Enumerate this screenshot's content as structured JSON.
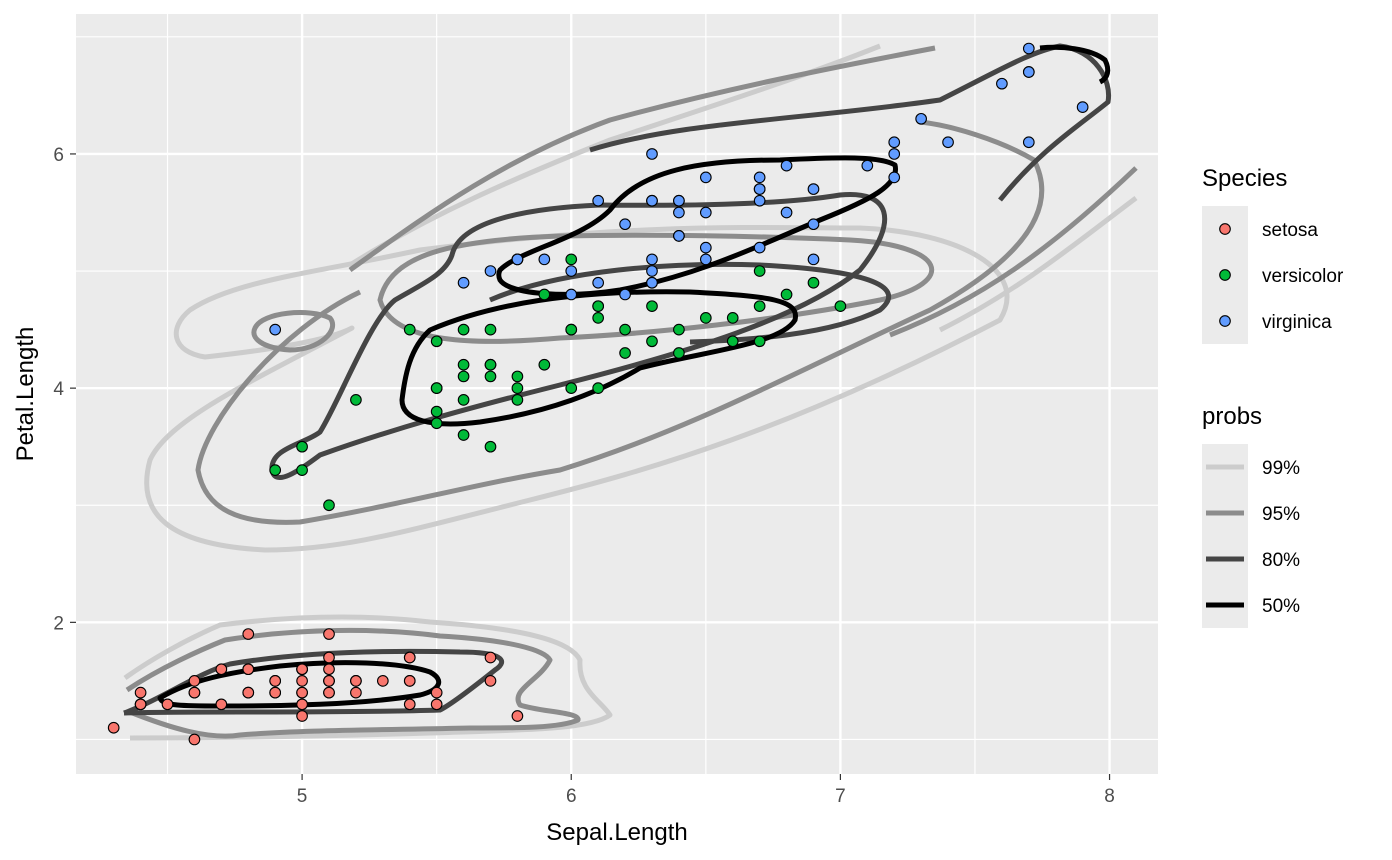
{
  "chart_data": {
    "type": "scatter",
    "title": "",
    "xlabel": "Sepal.Length",
    "ylabel": "Petal.Length",
    "xlim": [
      4.16,
      8.18
    ],
    "ylim": [
      0.705,
      7.195
    ],
    "x_ticks": [
      5,
      6,
      7,
      8
    ],
    "y_ticks": [
      2,
      4,
      6
    ],
    "x_tick_labels": [
      "5",
      "6",
      "7",
      "8"
    ],
    "y_tick_labels": [
      "2",
      "4",
      "6"
    ],
    "grid": true,
    "legend_placement": "right",
    "legends": {
      "species": {
        "title": "Species",
        "entries": [
          {
            "label": "setosa",
            "color": "#F8766D"
          },
          {
            "label": "versicolor",
            "color": "#00BA38"
          },
          {
            "label": "virginica",
            "color": "#619CFF"
          }
        ]
      },
      "probs": {
        "title": "probs",
        "entries": [
          {
            "label": "99%",
            "color": "#cccccc",
            "prob": 0.99
          },
          {
            "label": "95%",
            "color": "#8c8c8c",
            "prob": 0.95
          },
          {
            "label": "80%",
            "color": "#454545",
            "prob": 0.8
          },
          {
            "label": "50%",
            "color": "#000000",
            "prob": 0.5
          }
        ]
      }
    },
    "series": [
      {
        "name": "setosa",
        "color": "#F8766D",
        "points": [
          [
            5.1,
            1.4
          ],
          [
            4.9,
            1.4
          ],
          [
            4.7,
            1.3
          ],
          [
            4.6,
            1.5
          ],
          [
            5.0,
            1.4
          ],
          [
            5.4,
            1.7
          ],
          [
            4.6,
            1.4
          ],
          [
            5.0,
            1.5
          ],
          [
            4.4,
            1.4
          ],
          [
            4.9,
            1.5
          ],
          [
            5.4,
            1.5
          ],
          [
            4.8,
            1.6
          ],
          [
            4.8,
            1.4
          ],
          [
            4.3,
            1.1
          ],
          [
            5.8,
            1.2
          ],
          [
            5.7,
            1.5
          ],
          [
            5.4,
            1.3
          ],
          [
            5.1,
            1.4
          ],
          [
            5.7,
            1.7
          ],
          [
            5.1,
            1.5
          ],
          [
            5.4,
            1.7
          ],
          [
            5.1,
            1.5
          ],
          [
            4.6,
            1.0
          ],
          [
            5.1,
            1.7
          ],
          [
            4.8,
            1.9
          ],
          [
            5.0,
            1.6
          ],
          [
            5.0,
            1.6
          ],
          [
            5.2,
            1.5
          ],
          [
            5.2,
            1.4
          ],
          [
            4.7,
            1.6
          ],
          [
            4.8,
            1.6
          ],
          [
            5.4,
            1.5
          ],
          [
            5.2,
            1.5
          ],
          [
            5.5,
            1.4
          ],
          [
            4.9,
            1.5
          ],
          [
            5.0,
            1.2
          ],
          [
            5.5,
            1.3
          ],
          [
            4.9,
            1.4
          ],
          [
            4.4,
            1.3
          ],
          [
            5.1,
            1.5
          ],
          [
            5.0,
            1.3
          ],
          [
            4.5,
            1.3
          ],
          [
            4.4,
            1.3
          ],
          [
            5.0,
            1.6
          ],
          [
            5.1,
            1.9
          ],
          [
            4.8,
            1.4
          ],
          [
            5.1,
            1.6
          ],
          [
            4.6,
            1.4
          ],
          [
            5.3,
            1.5
          ],
          [
            5.0,
            1.4
          ]
        ]
      },
      {
        "name": "versicolor",
        "color": "#00BA38",
        "points": [
          [
            7.0,
            4.7
          ],
          [
            6.4,
            4.5
          ],
          [
            6.9,
            4.9
          ],
          [
            5.5,
            4.0
          ],
          [
            6.5,
            4.6
          ],
          [
            5.7,
            4.5
          ],
          [
            6.3,
            4.7
          ],
          [
            4.9,
            3.3
          ],
          [
            6.6,
            4.6
          ],
          [
            5.2,
            3.9
          ],
          [
            5.0,
            3.5
          ],
          [
            5.9,
            4.2
          ],
          [
            6.0,
            4.0
          ],
          [
            6.1,
            4.7
          ],
          [
            5.6,
            3.6
          ],
          [
            6.7,
            4.4
          ],
          [
            5.6,
            4.5
          ],
          [
            5.8,
            4.1
          ],
          [
            6.2,
            4.5
          ],
          [
            5.6,
            3.9
          ],
          [
            5.9,
            4.8
          ],
          [
            6.1,
            4.0
          ],
          [
            6.3,
            4.9
          ],
          [
            6.1,
            4.7
          ],
          [
            6.4,
            4.3
          ],
          [
            6.6,
            4.4
          ],
          [
            6.8,
            4.8
          ],
          [
            6.7,
            5.0
          ],
          [
            6.0,
            4.5
          ],
          [
            5.7,
            3.5
          ],
          [
            5.5,
            3.8
          ],
          [
            5.5,
            3.7
          ],
          [
            5.8,
            3.9
          ],
          [
            6.0,
            5.1
          ],
          [
            5.4,
            4.5
          ],
          [
            6.0,
            4.5
          ],
          [
            6.7,
            4.7
          ],
          [
            6.3,
            4.4
          ],
          [
            5.6,
            4.1
          ],
          [
            5.5,
            4.0
          ],
          [
            5.5,
            4.4
          ],
          [
            6.1,
            4.6
          ],
          [
            5.8,
            4.0
          ],
          [
            5.0,
            3.3
          ],
          [
            5.6,
            4.2
          ],
          [
            5.7,
            4.2
          ],
          [
            5.7,
            4.2
          ],
          [
            6.2,
            4.3
          ],
          [
            5.1,
            3.0
          ],
          [
            5.7,
            4.1
          ]
        ]
      },
      {
        "name": "virginica",
        "color": "#619CFF",
        "points": [
          [
            6.3,
            6.0
          ],
          [
            5.8,
            5.1
          ],
          [
            7.1,
            5.9
          ],
          [
            6.3,
            5.6
          ],
          [
            6.5,
            5.8
          ],
          [
            7.6,
            6.6
          ],
          [
            4.9,
            4.5
          ],
          [
            7.3,
            6.3
          ],
          [
            6.7,
            5.8
          ],
          [
            7.2,
            6.1
          ],
          [
            6.5,
            5.1
          ],
          [
            6.4,
            5.3
          ],
          [
            6.8,
            5.5
          ],
          [
            5.7,
            5.0
          ],
          [
            5.8,
            5.1
          ],
          [
            6.4,
            5.3
          ],
          [
            6.5,
            5.5
          ],
          [
            7.7,
            6.7
          ],
          [
            7.7,
            6.9
          ],
          [
            6.0,
            5.0
          ],
          [
            6.9,
            5.7
          ],
          [
            5.6,
            4.9
          ],
          [
            7.7,
            6.7
          ],
          [
            6.3,
            4.9
          ],
          [
            6.7,
            5.7
          ],
          [
            7.2,
            6.0
          ],
          [
            6.2,
            4.8
          ],
          [
            6.1,
            4.9
          ],
          [
            6.4,
            5.6
          ],
          [
            7.2,
            5.8
          ],
          [
            7.4,
            6.1
          ],
          [
            7.9,
            6.4
          ],
          [
            6.4,
            5.6
          ],
          [
            6.3,
            5.1
          ],
          [
            6.1,
            5.6
          ],
          [
            7.7,
            6.1
          ],
          [
            6.3,
            5.6
          ],
          [
            6.4,
            5.5
          ],
          [
            6.0,
            4.8
          ],
          [
            6.9,
            5.4
          ],
          [
            6.7,
            5.6
          ],
          [
            6.9,
            5.1
          ],
          [
            5.8,
            5.1
          ],
          [
            6.8,
            5.9
          ],
          [
            6.7,
            5.7
          ],
          [
            6.7,
            5.2
          ],
          [
            6.3,
            5.0
          ],
          [
            6.5,
            5.2
          ],
          [
            6.2,
            5.4
          ],
          [
            5.9,
            5.1
          ]
        ]
      }
    ]
  }
}
